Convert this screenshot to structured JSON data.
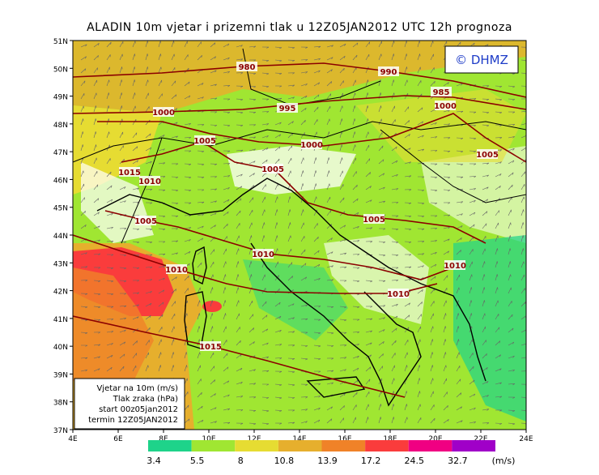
{
  "title": "ALADIN 10m vjetar i prizemni tlak u 12Z05JAN2012 UTC 12h prognoza",
  "copyright": "© DHMZ",
  "lat_labels": [
    "51N",
    "50N",
    "49N",
    "48N",
    "47N",
    "46N",
    "45N",
    "44N",
    "43N",
    "42N",
    "41N",
    "40N",
    "39N",
    "38N",
    "37N"
  ],
  "lon_labels": [
    "4E",
    "6E",
    "8E",
    "10E",
    "12E",
    "14E",
    "16E",
    "18E",
    "20E",
    "22E",
    "24E"
  ],
  "isobar_labels": [
    "980",
    "990",
    "985",
    "995",
    "1000",
    "1000",
    "1005",
    "1000",
    "1005",
    "1015",
    "1010",
    "1005",
    "1005",
    "1005",
    "1010",
    "1010",
    "1010",
    "1010",
    "1015"
  ],
  "info_box": [
    "Vjetar na 10m (m/s)",
    "Tlak zraka (hPa)",
    "start 00z05jan2012",
    "termin 12Z05JAN2012"
  ],
  "colorbar": {
    "labels": [
      "3.4",
      "5.5",
      "8",
      "10.8",
      "13.9",
      "17.2",
      "24.5",
      "32.7"
    ],
    "colors": [
      "#1ed38a",
      "#a0e632",
      "#e6dc32",
      "#e6af2d",
      "#f08228",
      "#fa3c3c",
      "#f00082",
      "#a000c8"
    ],
    "unit": "(m/s)"
  }
}
